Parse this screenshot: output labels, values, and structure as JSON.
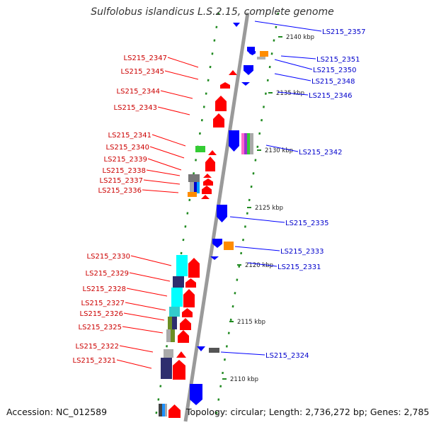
{
  "title": "Sulfolobus islandicus L.S.2.15, complete genome",
  "footer": {
    "accession": "Accession: NC_012589",
    "stats": "Topology: circular; Length: 2,736,272 bp; Genes: 2,785"
  },
  "colors": {
    "forward_strand": "#ff0000",
    "reverse_strand": "#0000ff",
    "backbone": "#9a9a9a",
    "dotted_guides": "#228b22",
    "forward_label": "#cc0000",
    "reverse_label": "#0000cc"
  },
  "axis": {
    "unit": "kbp",
    "ticks": [
      "2140 kbp",
      "2135 kbp",
      "2130 kbp",
      "2125 kbp",
      "2120 kbp",
      "2115 kbp",
      "2110 kbp"
    ]
  },
  "reverse_genes": [
    "LS215_2357",
    "LS215_2351",
    "LS215_2350",
    "LS215_2348",
    "LS215_2346",
    "LS215_2342",
    "LS215_2335",
    "LS215_2333",
    "LS215_2331",
    "LS215_2324"
  ],
  "forward_genes": [
    "LS215_2347",
    "LS215_2345",
    "LS215_2344",
    "LS215_2343",
    "LS215_2341",
    "LS215_2340",
    "LS215_2339",
    "LS215_2338",
    "LS215_2337",
    "LS215_2336",
    "LS215_2330",
    "LS215_2329",
    "LS215_2328",
    "LS215_2327",
    "LS215_2326",
    "LS215_2325",
    "LS215_2322",
    "LS215_2321"
  ]
}
